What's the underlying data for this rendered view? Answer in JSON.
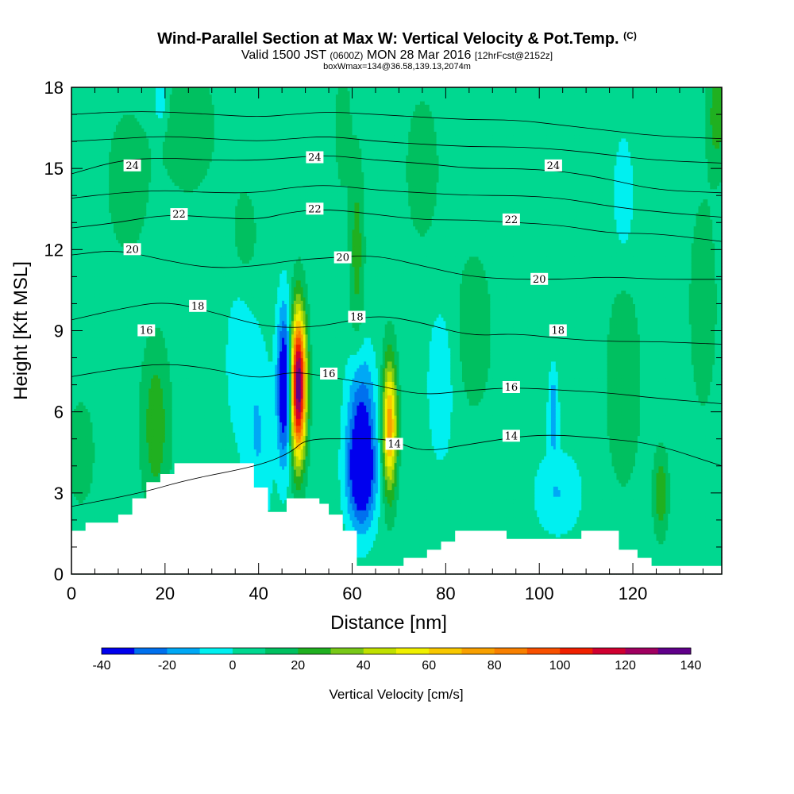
{
  "title": "Wind-Parallel Section at Max W: Vertical Velocity & Pot.Temp.",
  "title_mark": "(C)",
  "subtitle": {
    "valid": "Valid 1500 JST",
    "utc": "(0600Z)",
    "date": "MON 28 Mar 2016",
    "fcst": "[12hrFcst@2152z]"
  },
  "subtitle2": "boxWmax=134@36.58,139.13,2074m",
  "chart_data": {
    "type": "heatmap",
    "xlabel": "Distance [nm]",
    "ylabel": "Height [Kft MSL]",
    "xlim": [
      0,
      139
    ],
    "ylim": [
      0,
      18
    ],
    "x_ticks": [
      0,
      20,
      40,
      60,
      80,
      100,
      120
    ],
    "y_ticks": [
      0,
      3,
      6,
      9,
      12,
      15,
      18
    ],
    "colorbar": {
      "label": "Vertical Velocity [cm/s]",
      "levels": [
        -40,
        -30,
        -20,
        -10,
        0,
        10,
        20,
        30,
        40,
        50,
        60,
        70,
        80,
        90,
        100,
        110,
        120,
        130,
        140
      ],
      "tick_labels": [
        -40,
        -20,
        0,
        20,
        40,
        60,
        80,
        100,
        120,
        140
      ],
      "colors": [
        "#0000ee",
        "#0070ee",
        "#00a8f5",
        "#00f0f0",
        "#00d890",
        "#00c060",
        "#20b020",
        "#78c818",
        "#c0e000",
        "#f0f000",
        "#f8c800",
        "#f8a000",
        "#f88000",
        "#f85000",
        "#f02000",
        "#d00030",
        "#a00060",
        "#60008a"
      ]
    },
    "background_value": 5,
    "velocity_features": [
      {
        "x": 48.5,
        "y": 7.0,
        "sx": 1.6,
        "sy": 2.6,
        "w": 135,
        "note": "max updraft"
      },
      {
        "x": 68.0,
        "y": 5.5,
        "sx": 1.5,
        "sy": 2.4,
        "w": 72
      },
      {
        "x": 45.5,
        "y": 7.0,
        "sx": 1.5,
        "sy": 2.8,
        "w": -55
      },
      {
        "x": 62.0,
        "y": 3.8,
        "sx": 3.0,
        "sy": 2.0,
        "w": -60
      },
      {
        "x": 62.0,
        "y": 6.5,
        "sx": 3.0,
        "sy": 2.0,
        "w": -25
      },
      {
        "x": 40.0,
        "y": 5.0,
        "sx": 3.0,
        "sy": 3.5,
        "w": -15
      },
      {
        "x": 18.0,
        "y": 5.5,
        "sx": 3.0,
        "sy": 3.0,
        "w": 22
      },
      {
        "x": 2.0,
        "y": 4.5,
        "sx": 3.0,
        "sy": 2.0,
        "w": 12
      },
      {
        "x": 12.0,
        "y": 14.5,
        "sx": 5.0,
        "sy": 3.0,
        "w": 10
      },
      {
        "x": 25.0,
        "y": 16.5,
        "sx": 6.0,
        "sy": 2.5,
        "w": 12
      },
      {
        "x": 36.0,
        "y": 8.0,
        "sx": 3.0,
        "sy": 3.0,
        "w": -12
      },
      {
        "x": 61.0,
        "y": 12.0,
        "sx": 1.5,
        "sy": 3.5,
        "w": 20
      },
      {
        "x": 58.0,
        "y": 16.5,
        "sx": 1.5,
        "sy": 2.0,
        "w": 15
      },
      {
        "x": 75.0,
        "y": 15.0,
        "sx": 4.0,
        "sy": 3.0,
        "w": 10
      },
      {
        "x": 86.0,
        "y": 9.0,
        "sx": 4.0,
        "sy": 3.0,
        "w": 12
      },
      {
        "x": 79.0,
        "y": 7.0,
        "sx": 3.0,
        "sy": 3.0,
        "w": -12
      },
      {
        "x": 104.0,
        "y": 3.0,
        "sx": 5.0,
        "sy": 1.5,
        "w": -15
      },
      {
        "x": 103.0,
        "y": 6.0,
        "sx": 1.0,
        "sy": 1.5,
        "w": -25
      },
      {
        "x": 118.0,
        "y": 7.0,
        "sx": 4.0,
        "sy": 4.0,
        "w": 12
      },
      {
        "x": 126.0,
        "y": 3.0,
        "sx": 1.5,
        "sy": 1.5,
        "w": 25
      },
      {
        "x": 118.0,
        "y": 14.0,
        "sx": 2.0,
        "sy": 2.0,
        "w": -15
      },
      {
        "x": 135.0,
        "y": 10.0,
        "sx": 3.0,
        "sy": 4.0,
        "w": 12
      },
      {
        "x": 138.0,
        "y": 17.0,
        "sx": 2.0,
        "sy": 2.0,
        "w": 22
      },
      {
        "x": 19.0,
        "y": 17.5,
        "sx": 1.5,
        "sy": 1.0,
        "w": -15
      },
      {
        "x": 37.0,
        "y": 12.5,
        "sx": 3.0,
        "sy": 2.0,
        "w": 10
      }
    ],
    "terrain": {
      "x": [
        0,
        3,
        3,
        10,
        10,
        13,
        13,
        16,
        16,
        19,
        19,
        22,
        22,
        39,
        39,
        42,
        42,
        46,
        46,
        49,
        49,
        53,
        53,
        55,
        55,
        58,
        58,
        61,
        61,
        64,
        64,
        68,
        68,
        71,
        71,
        73,
        73,
        76,
        76,
        79,
        79,
        82,
        82,
        84,
        84,
        93,
        93,
        109,
        109,
        117,
        117,
        121,
        121,
        124,
        124,
        126,
        126,
        139
      ],
      "y": [
        1.6,
        1.6,
        1.9,
        1.9,
        2.2,
        2.2,
        2.8,
        2.8,
        3.4,
        3.4,
        3.7,
        3.7,
        4.1,
        4.1,
        3.2,
        3.2,
        2.3,
        2.3,
        2.8,
        2.8,
        2.8,
        2.8,
        2.6,
        2.6,
        2.2,
        2.2,
        1.6,
        1.6,
        0.3,
        0.3,
        0.3,
        0.3,
        0.3,
        0.3,
        0.6,
        0.6,
        0.6,
        0.6,
        0.9,
        0.9,
        1.2,
        1.2,
        1.6,
        1.6,
        1.6,
        1.6,
        1.3,
        1.3,
        1.6,
        1.6,
        0.9,
        0.9,
        0.6,
        0.6,
        0.3,
        0.3,
        0.3,
        0.3
      ]
    },
    "theta_isentropes": [
      {
        "label": "14",
        "x": [
          0,
          15,
          25,
          40,
          47,
          50,
          60,
          68,
          75,
          85,
          100,
          115,
          125,
          139
        ],
        "y": [
          2.5,
          3.0,
          3.5,
          4.0,
          4.5,
          5.0,
          5.0,
          5.0,
          4.5,
          4.8,
          5.2,
          5.0,
          4.8,
          4.0
        ]
      },
      {
        "label": "16",
        "x": [
          0,
          10,
          20,
          30,
          40,
          47,
          55,
          65,
          75,
          85,
          95,
          105,
          115,
          125,
          139
        ],
        "y": [
          7.3,
          7.6,
          7.8,
          7.6,
          7.2,
          7.5,
          7.3,
          7.0,
          6.6,
          6.8,
          6.9,
          6.8,
          6.7,
          6.5,
          6.3
        ]
      },
      {
        "label": "18",
        "x": [
          0,
          10,
          20,
          30,
          40,
          47,
          55,
          65,
          75,
          85,
          95,
          105,
          115,
          125,
          139
        ],
        "y": [
          9.4,
          9.8,
          10.1,
          9.7,
          9.2,
          9.1,
          9.2,
          9.6,
          9.3,
          8.8,
          8.9,
          8.7,
          8.6,
          8.6,
          8.5
        ]
      },
      {
        "label": "20",
        "x": [
          0,
          10,
          20,
          30,
          40,
          47,
          55,
          65,
          75,
          85,
          95,
          105,
          115,
          125,
          139
        ],
        "y": [
          11.8,
          12.0,
          11.6,
          11.3,
          11.4,
          11.6,
          11.7,
          11.8,
          11.4,
          11.0,
          10.9,
          10.9,
          11.0,
          10.9,
          10.9
        ]
      },
      {
        "label": "22",
        "x": [
          0,
          10,
          20,
          30,
          40,
          47,
          55,
          65,
          75,
          85,
          95,
          105,
          115,
          125,
          139
        ],
        "y": [
          12.8,
          13.0,
          13.3,
          13.2,
          13.1,
          13.4,
          13.5,
          13.3,
          13.1,
          13.1,
          13.0,
          12.9,
          12.6,
          12.6,
          12.3
        ]
      },
      {
        "label": "24",
        "x": [
          0,
          10,
          20,
          30,
          40,
          47,
          55,
          65,
          75,
          85,
          95,
          105,
          115,
          125,
          139
        ],
        "y": [
          14.8,
          15.3,
          15.4,
          15.3,
          15.3,
          15.4,
          15.5,
          15.3,
          15.2,
          15.0,
          15.0,
          14.9,
          14.6,
          14.2,
          14.1
        ]
      },
      {
        "label": "",
        "x": [
          0,
          10,
          20,
          30,
          40,
          47,
          55,
          65,
          75,
          85,
          95,
          105,
          115,
          125,
          139
        ],
        "y": [
          13.9,
          14.1,
          14.2,
          14.1,
          14.1,
          14.3,
          14.4,
          14.2,
          14.1,
          14.0,
          14.0,
          13.9,
          13.6,
          13.4,
          13.2
        ]
      },
      {
        "label": "",
        "x": [
          0,
          10,
          20,
          30,
          40,
          47,
          55,
          65,
          75,
          85,
          95,
          105,
          115,
          125,
          139
        ],
        "y": [
          16.0,
          16.1,
          16.2,
          16.1,
          16.0,
          16.1,
          16.2,
          16.0,
          15.9,
          15.8,
          15.8,
          15.7,
          15.5,
          15.3,
          15.2
        ]
      },
      {
        "label": "",
        "x": [
          0,
          10,
          20,
          30,
          40,
          47,
          55,
          65,
          75,
          85,
          95,
          105,
          115,
          125,
          139
        ],
        "y": [
          17.0,
          17.1,
          17.1,
          17.0,
          16.9,
          17.0,
          17.1,
          17.0,
          16.9,
          16.8,
          16.8,
          16.6,
          16.4,
          16.2,
          16.1
        ]
      }
    ],
    "theta_labels": [
      {
        "text": "24",
        "x": 13,
        "y": 15.1
      },
      {
        "text": "24",
        "x": 52,
        "y": 15.4
      },
      {
        "text": "24",
        "x": 103,
        "y": 15.1
      },
      {
        "text": "22",
        "x": 23,
        "y": 13.3
      },
      {
        "text": "22",
        "x": 52,
        "y": 13.5
      },
      {
        "text": "22",
        "x": 94,
        "y": 13.1
      },
      {
        "text": "20",
        "x": 13,
        "y": 12.0
      },
      {
        "text": "20",
        "x": 58,
        "y": 11.7
      },
      {
        "text": "20",
        "x": 100,
        "y": 10.9
      },
      {
        "text": "18",
        "x": 27,
        "y": 9.9
      },
      {
        "text": "18",
        "x": 61,
        "y": 9.5
      },
      {
        "text": "18",
        "x": 104,
        "y": 9.0
      },
      {
        "text": "16",
        "x": 16,
        "y": 9.0
      },
      {
        "text": "16",
        "x": 55,
        "y": 7.4
      },
      {
        "text": "16",
        "x": 94,
        "y": 6.9
      },
      {
        "text": "14",
        "x": 94,
        "y": 5.1
      },
      {
        "text": "14",
        "x": 69,
        "y": 4.8
      }
    ]
  }
}
